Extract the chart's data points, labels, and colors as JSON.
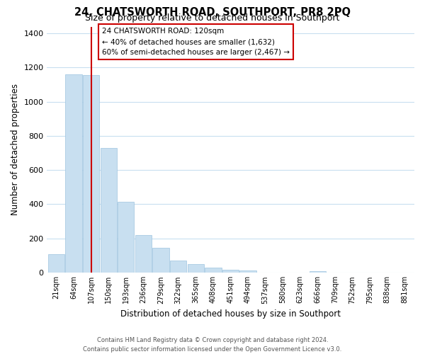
{
  "title": "24, CHATSWORTH ROAD, SOUTHPORT, PR8 2PQ",
  "subtitle": "Size of property relative to detached houses in Southport",
  "xlabel": "Distribution of detached houses by size in Southport",
  "ylabel": "Number of detached properties",
  "bar_labels": [
    "21sqm",
    "64sqm",
    "107sqm",
    "150sqm",
    "193sqm",
    "236sqm",
    "279sqm",
    "322sqm",
    "365sqm",
    "408sqm",
    "451sqm",
    "494sqm",
    "537sqm",
    "580sqm",
    "623sqm",
    "666sqm",
    "709sqm",
    "752sqm",
    "795sqm",
    "838sqm",
    "881sqm"
  ],
  "bar_values": [
    107,
    1160,
    1155,
    730,
    415,
    220,
    147,
    72,
    50,
    30,
    18,
    13,
    0,
    0,
    0,
    8,
    0,
    0,
    0,
    0,
    0
  ],
  "bar_color": "#c8dff0",
  "bar_edge_color": "#9ec4e0",
  "vline_x": 2.0,
  "vline_color": "#cc0000",
  "ylim": [
    0,
    1440
  ],
  "yticks": [
    0,
    200,
    400,
    600,
    800,
    1000,
    1200,
    1400
  ],
  "annotation_title": "24 CHATSWORTH ROAD: 120sqm",
  "annotation_line1": "← 40% of detached houses are smaller (1,632)",
  "annotation_line2": "60% of semi-detached houses are larger (2,467) →",
  "annotation_box_color": "#ffffff",
  "annotation_box_edge": "#cc0000",
  "footer_line1": "Contains HM Land Registry data © Crown copyright and database right 2024.",
  "footer_line2": "Contains public sector information licensed under the Open Government Licence v3.0.",
  "background_color": "#ffffff",
  "grid_color": "#c8dff0"
}
